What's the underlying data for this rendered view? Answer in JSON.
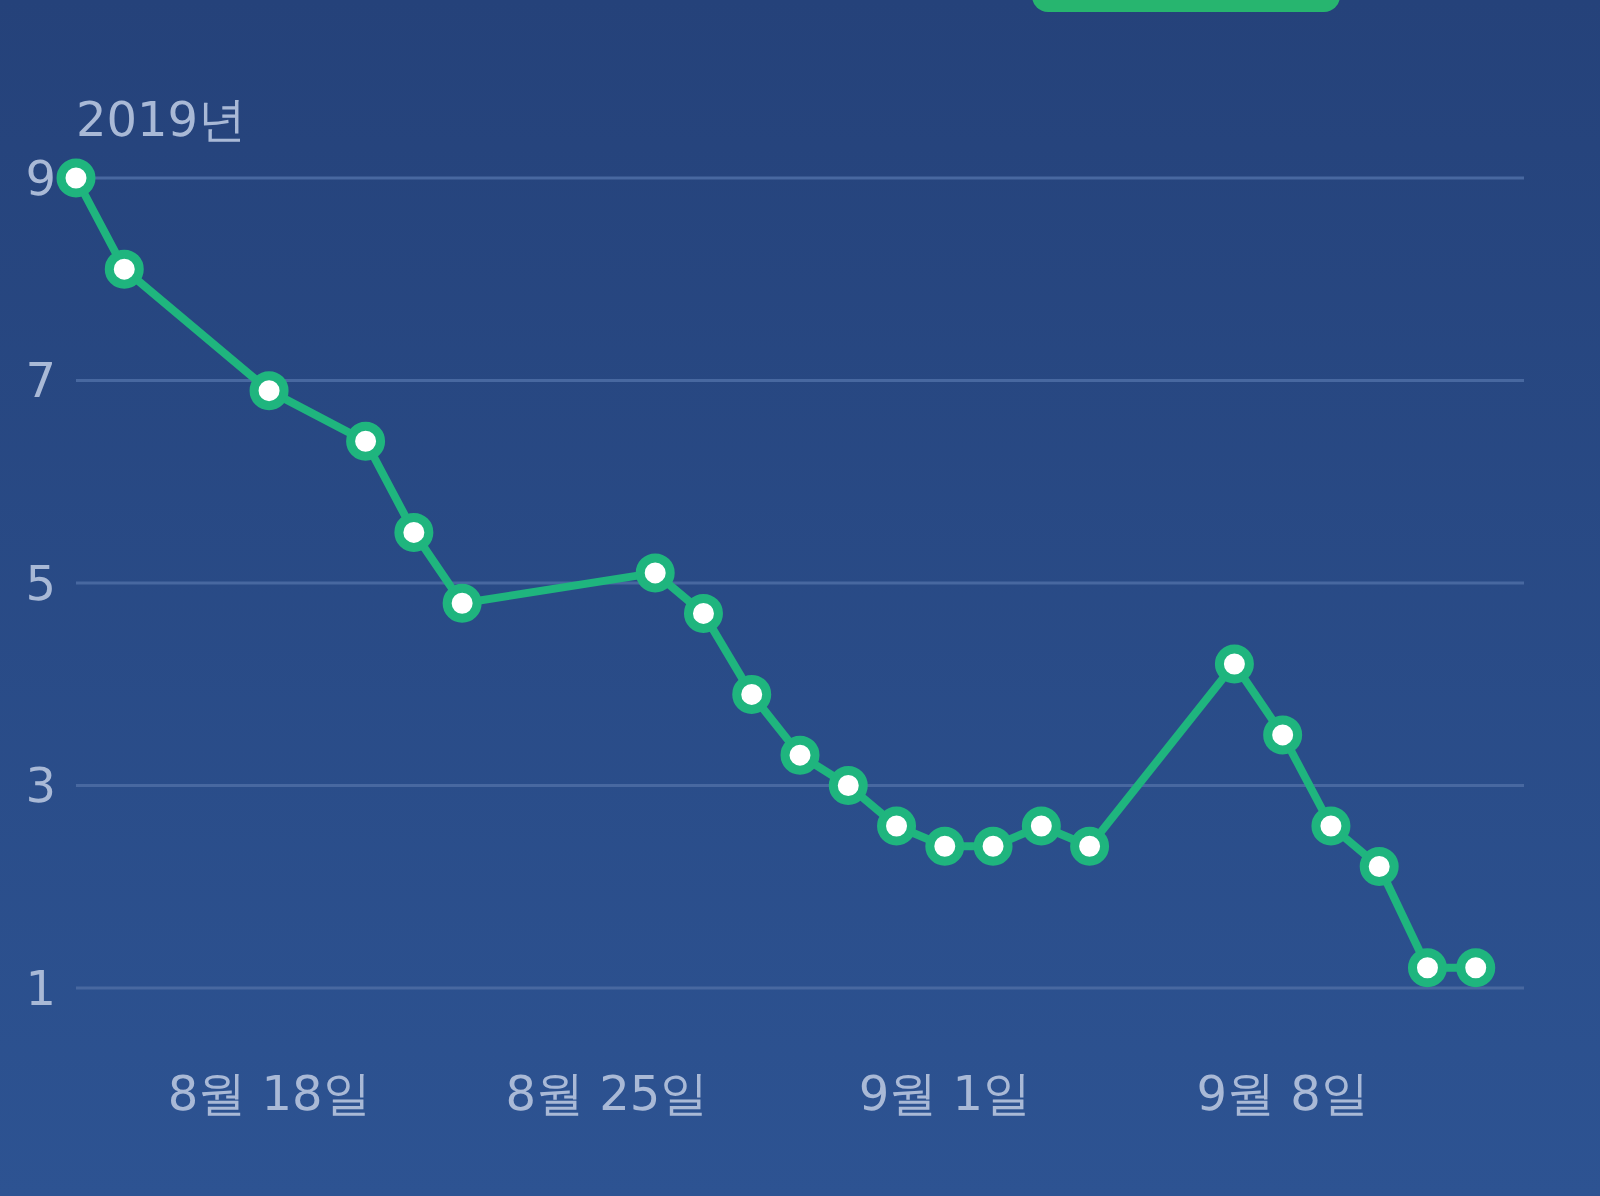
{
  "chart_data": {
    "type": "line",
    "annotations": [
      "2019년"
    ],
    "x": [
      "2019-08-14",
      "2019-08-15",
      "2019-08-18",
      "2019-08-20",
      "2019-08-21",
      "2019-08-22",
      "2019-08-26",
      "2019-08-27",
      "2019-08-28",
      "2019-08-29",
      "2019-08-30",
      "2019-08-31",
      "2019-09-01",
      "2019-09-02",
      "2019-09-03",
      "2019-09-04",
      "2019-09-07",
      "2019-09-08",
      "2019-09-09",
      "2019-09-10",
      "2019-09-11",
      "2019-09-12"
    ],
    "series": [
      {
        "color": "#1fb57e",
        "values": [
          9.0,
          8.1,
          6.9,
          6.4,
          5.5,
          4.8,
          5.1,
          4.7,
          3.9,
          3.3,
          3.0,
          2.6,
          2.4,
          2.4,
          2.6,
          2.4,
          4.2,
          3.5,
          2.6,
          2.2,
          1.2,
          1.2
        ]
      }
    ],
    "xlim": [
      "2019-08-14",
      "2019-09-13"
    ],
    "xticks": [
      {
        "value": "2019-08-18",
        "label": "8월 18일"
      },
      {
        "value": "2019-08-25",
        "label": "8월 25일"
      },
      {
        "value": "2019-09-01",
        "label": "9월 1일"
      },
      {
        "value": "2019-09-08",
        "label": "9월 8일"
      }
    ],
    "ylim": [
      1,
      9
    ],
    "yticks": [
      1,
      3,
      5,
      7,
      9
    ],
    "grid": "y",
    "marker": "circle",
    "line_style": "solid"
  }
}
